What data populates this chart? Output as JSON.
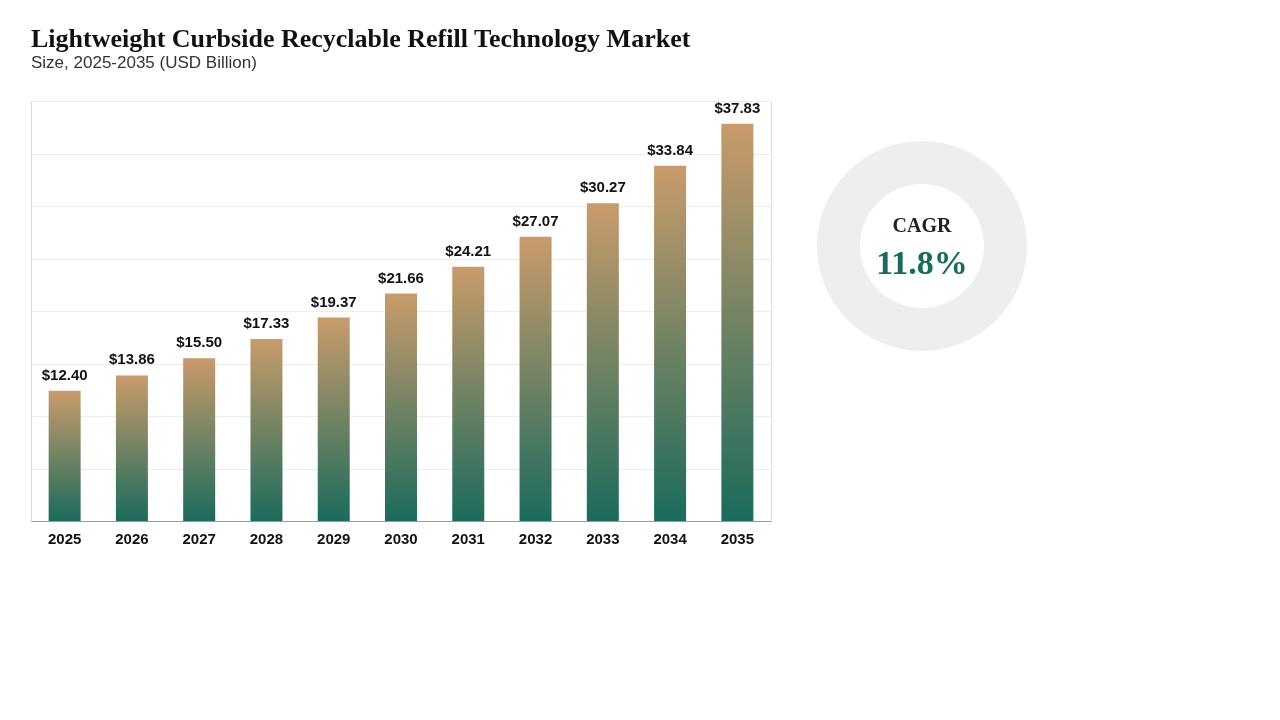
{
  "chart_data": [
    {
      "type": "bar",
      "title": "Lightweight Curbside Recyclable Refill Technology Market",
      "subtitle": "Size, 2025-2035 (USD Billion)",
      "categories": [
        "2025",
        "2026",
        "2027",
        "2028",
        "2029",
        "2030",
        "2031",
        "2032",
        "2033",
        "2034",
        "2035"
      ],
      "values": [
        12.4,
        13.86,
        15.5,
        17.33,
        19.37,
        21.66,
        24.21,
        27.07,
        30.27,
        33.84,
        37.83
      ],
      "value_labels": [
        "$12.40",
        "$13.86",
        "$15.50",
        "$17.33",
        "$19.37",
        "$21.66",
        "$24.21",
        "$27.07",
        "$30.27",
        "$33.84",
        "$37.83"
      ],
      "color": "#1b6b5c",
      "ylim": [
        0,
        40
      ],
      "yticks": [
        {
          "value": 0,
          "label": null
        },
        {
          "value": 5,
          "label": null
        },
        {
          "value": 10,
          "label": null
        },
        {
          "value": 15,
          "label": null
        },
        {
          "value": 20,
          "label": null
        },
        {
          "value": 25,
          "label": null
        },
        {
          "value": 30,
          "label": null
        },
        {
          "value": 35,
          "label": null
        },
        {
          "value": 40,
          "label": null
        }
      ],
      "tick_labels": "x",
      "grid": "y"
    },
    {
      "type": "other",
      "annotations": [
        "CAGR",
        "11.8%"
      ]
    }
  ]
}
